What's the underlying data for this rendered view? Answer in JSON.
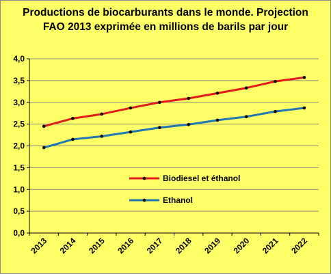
{
  "chart_data": {
    "type": "line",
    "title_line1": "Productions de biocarburants dans le monde. Projection",
    "title_line2": "FAO  2013 exprimée en millions de barils par jour",
    "categories": [
      "2013",
      "2014",
      "2015",
      "2016",
      "2017",
      "2018",
      "2019",
      "2020",
      "2021",
      "2022"
    ],
    "y_ticks": [
      "0,0",
      "0,5",
      "1,0",
      "1,5",
      "2,0",
      "2,5",
      "3,0",
      "3,5",
      "4,0"
    ],
    "ylim": [
      0,
      4
    ],
    "grid": "horizontal",
    "legend_position": "inside-center",
    "series": [
      {
        "name": "Biodiesel et éthanol",
        "color": "#e31a1c",
        "values": [
          2.45,
          2.63,
          2.73,
          2.87,
          3.0,
          3.09,
          3.21,
          3.33,
          3.48,
          3.57
        ]
      },
      {
        "name": "Ethanol",
        "color": "#1f77b4",
        "values": [
          1.96,
          2.15,
          2.22,
          2.32,
          2.42,
          2.49,
          2.59,
          2.67,
          2.79,
          2.87
        ]
      }
    ]
  }
}
